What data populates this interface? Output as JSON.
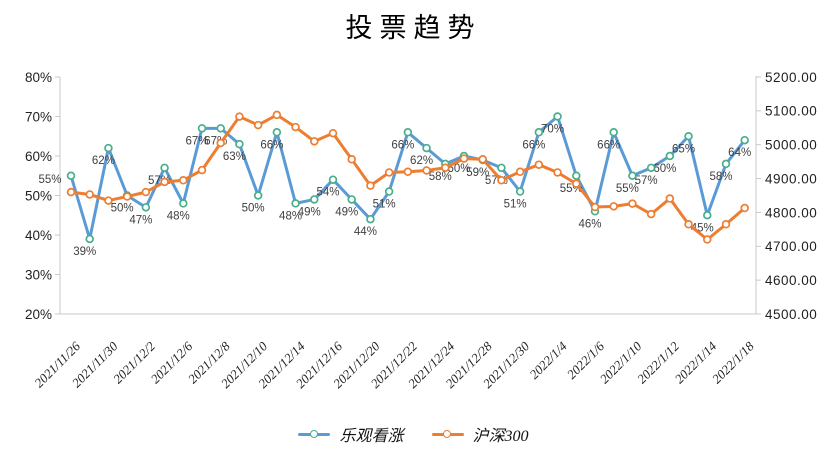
{
  "chart_data": {
    "type": "line",
    "title": "投票趋势",
    "legend_position": "bottom",
    "grid": false,
    "n_points": 37,
    "x_tick_labels": [
      "2021/11/26",
      "2021/11/30",
      "2021/12/2",
      "2021/12/6",
      "2021/12/8",
      "2021/12/10",
      "2021/12/14",
      "2021/12/16",
      "2021/12/20",
      "2021/12/22",
      "2021/12/24",
      "2021/12/28",
      "2021/12/30",
      "2022/1/4",
      "2022/1/6",
      "2022/1/10",
      "2022/1/12",
      "2022/1/14",
      "2022/1/18"
    ],
    "x_tick_every": 2,
    "left_axis": {
      "min": 20,
      "max": 80,
      "unit": "%",
      "tick_labels": [
        "80%",
        "70%",
        "60%",
        "50%",
        "40%",
        "30%",
        "20%"
      ]
    },
    "right_axis": {
      "min": 4500,
      "max": 5200,
      "tick_labels": [
        "5200.00",
        "5100.00",
        "5000.00",
        "4900.00",
        "4800.00",
        "4700.00",
        "4600.00",
        "4500.00"
      ]
    },
    "series": [
      {
        "name": "乐观看涨",
        "axis": "left",
        "line_color": "#5B9BD5",
        "marker_stroke": "#48AE8C",
        "values": [
          55,
          39,
          62,
          50,
          47,
          57,
          48,
          67,
          67,
          63,
          50,
          66,
          48,
          49,
          54,
          49,
          44,
          51,
          66,
          62,
          58,
          60,
          59,
          57,
          51,
          66,
          70,
          55,
          46,
          66,
          55,
          57,
          60,
          65,
          45,
          58,
          64
        ],
        "data_labels": [
          "55%",
          "39%",
          "62%",
          "50%",
          "47%",
          "57%",
          "48%",
          "67%",
          "67%",
          "63%",
          "50%",
          "66%",
          "48%",
          "49%",
          "54%",
          "49%",
          "44%",
          "51%",
          "66%",
          "62%",
          "58%",
          "60%",
          "59%",
          "57%",
          "51%",
          "66%",
          "70%",
          "55%",
          "46%",
          "66%",
          "55%",
          "57%",
          "60%",
          "65%",
          "45%",
          "58%",
          "64%"
        ]
      },
      {
        "name": "沪深300",
        "axis": "right",
        "line_color": "#ED7D31",
        "marker_stroke": "#ED7D31",
        "values": [
          4860,
          4853,
          4835,
          4847,
          4860,
          4890,
          4895,
          4925,
          5005,
          5083,
          5058,
          5088,
          5052,
          5010,
          5034,
          4957,
          4879,
          4918,
          4920,
          4924,
          4932,
          4959,
          4957,
          4895,
          4920,
          4941,
          4918,
          4885,
          4816,
          4818,
          4826,
          4795,
          4841,
          4765,
          4720,
          4765,
          4813
        ],
        "data_labels": []
      }
    ],
    "colors": {
      "axis_line": "#C9C9C9",
      "tick_text": "#1f1f1f",
      "data_label": "#3F3F3F",
      "background": "#FFFFFF"
    }
  }
}
